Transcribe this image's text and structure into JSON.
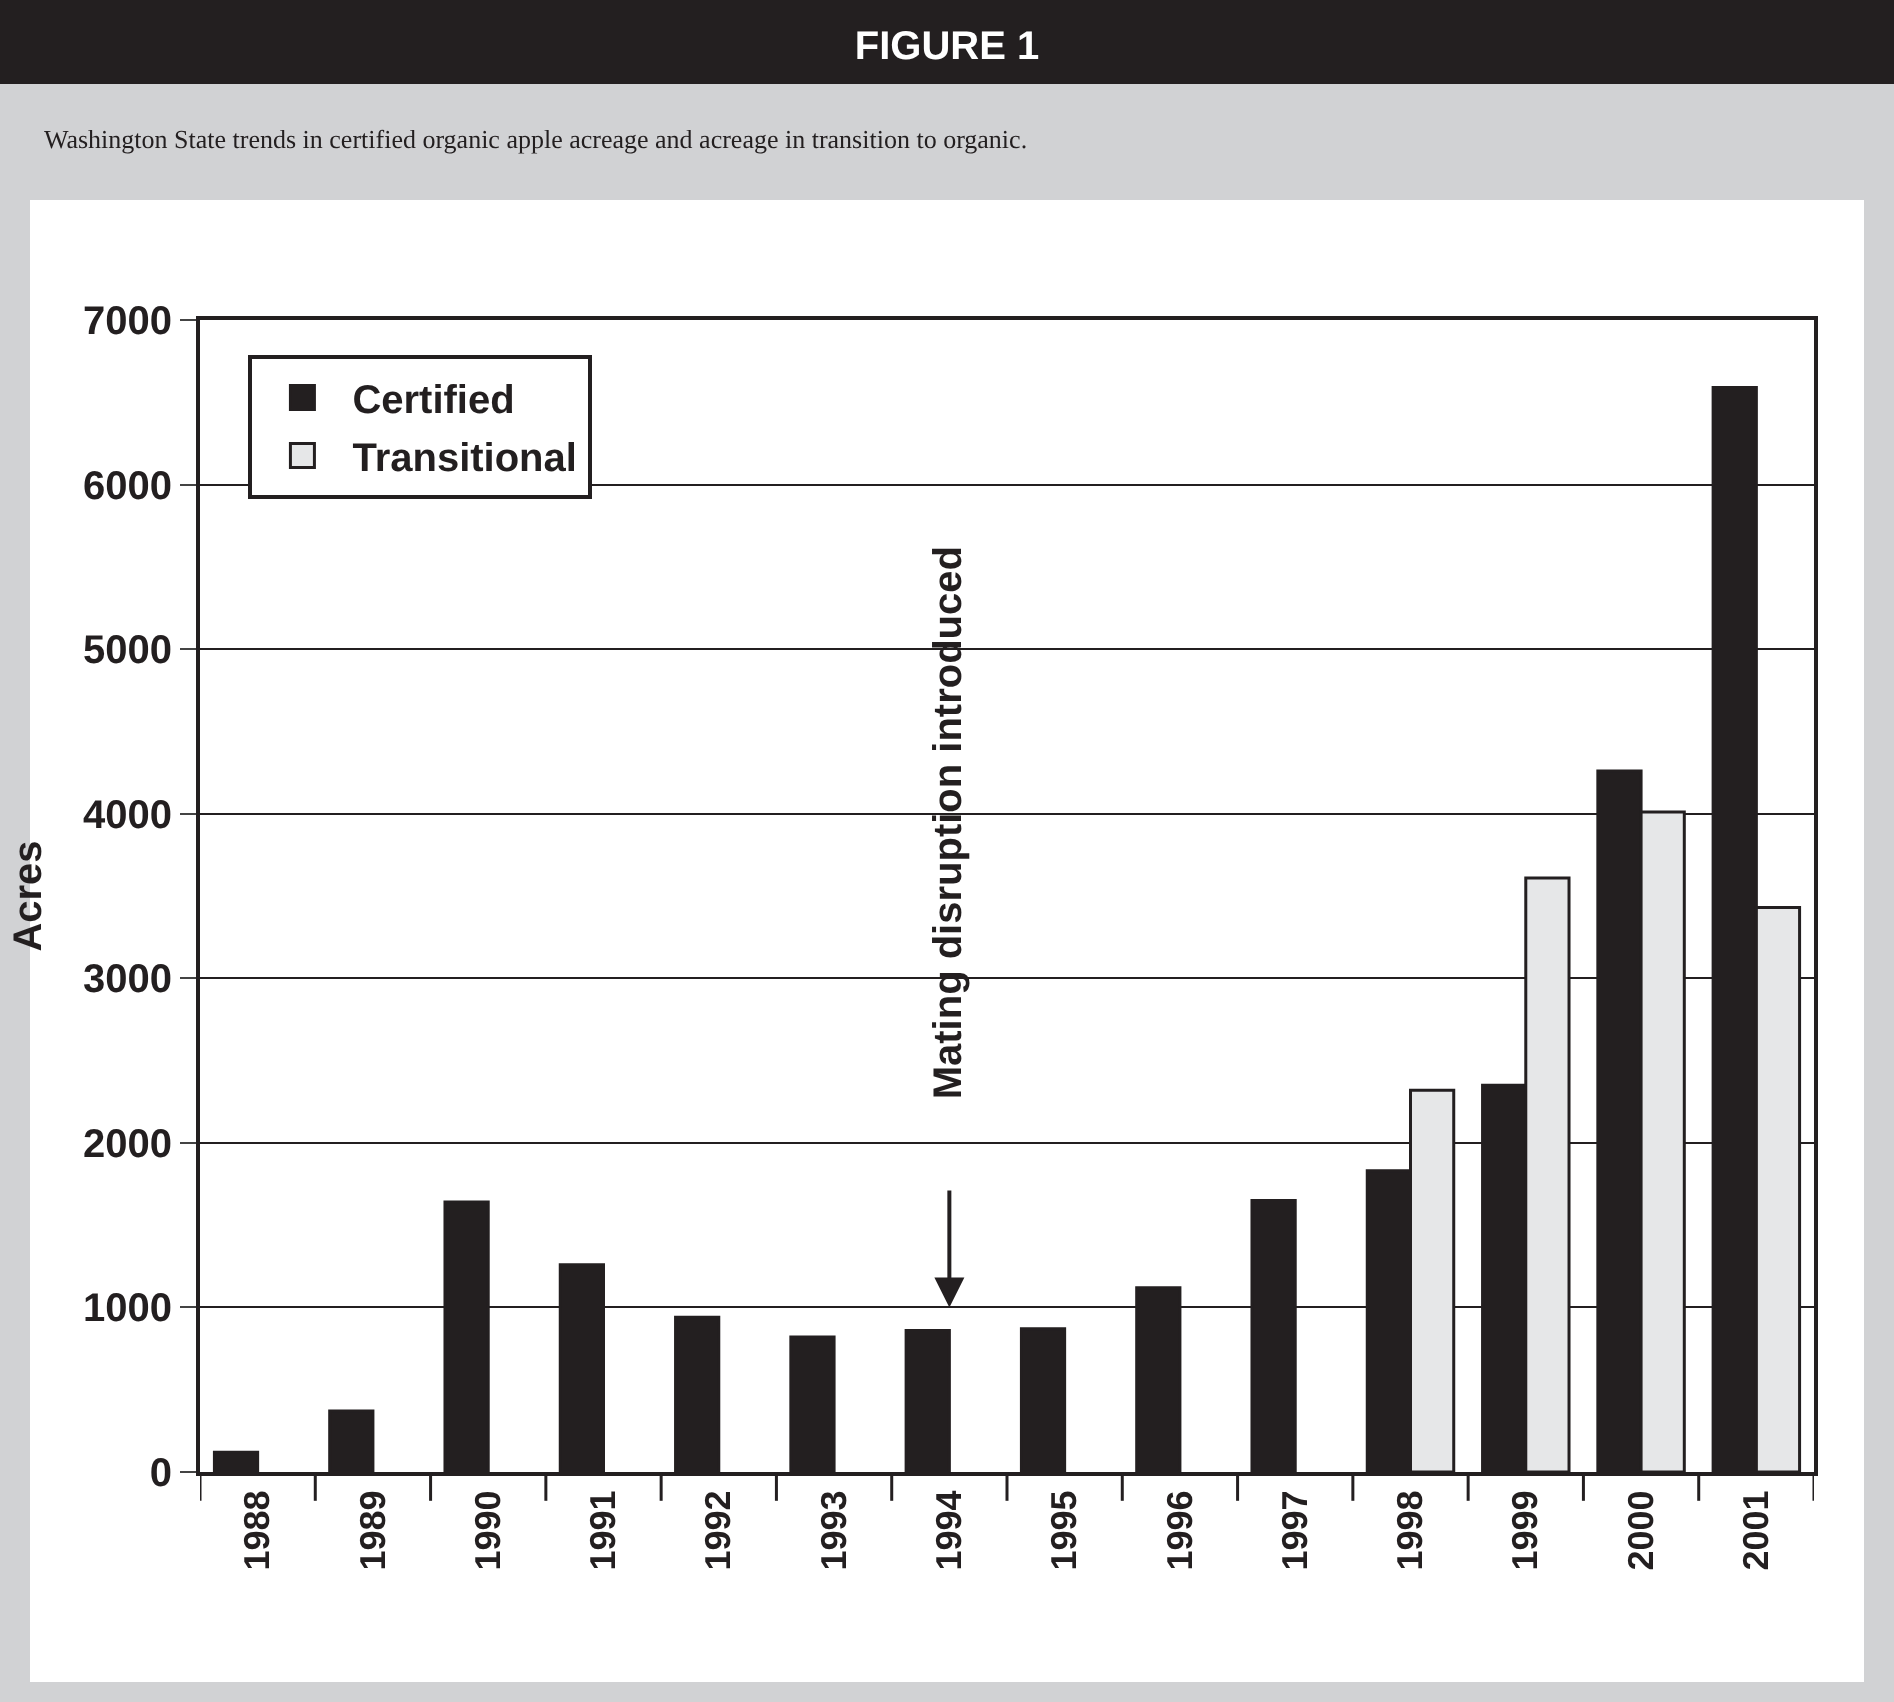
{
  "chart_data": {
    "type": "bar",
    "title": "FIGURE 1",
    "subtitle": "Washington State trends in certified organic apple acreage and acreage in transition to organic.",
    "ylabel": "Acres",
    "categories": [
      "1988",
      "1989",
      "1990",
      "1991",
      "1992",
      "1993",
      "1994",
      "1995",
      "1996",
      "1997",
      "1998",
      "1999",
      "2000",
      "2001"
    ],
    "series": [
      {
        "name": "Certified",
        "color": "#231f20",
        "values": [
          120,
          370,
          1640,
          1260,
          940,
          820,
          860,
          870,
          1120,
          1650,
          1830,
          2350,
          4260,
          6590
        ]
      },
      {
        "name": "Transitional",
        "color": "#e6e7e8",
        "values": [
          null,
          null,
          null,
          null,
          null,
          null,
          null,
          null,
          null,
          null,
          2320,
          3610,
          4010,
          3430
        ]
      }
    ],
    "ylim": [
      0,
      7000
    ],
    "yticks": [
      0,
      1000,
      2000,
      3000,
      4000,
      5000,
      6000,
      7000
    ],
    "grid": "y",
    "legend": "top left",
    "annotations": [
      "Mating disruption introduced"
    ]
  }
}
